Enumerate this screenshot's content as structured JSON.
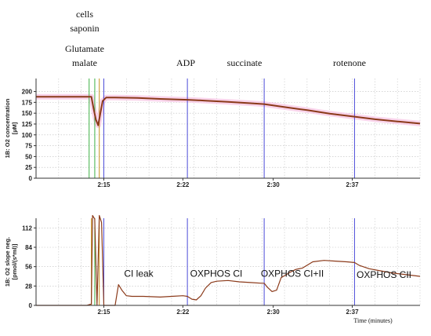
{
  "events": [
    {
      "label": "cells",
      "t": 13.9
    },
    {
      "label": "saponin",
      "t": 13.9
    },
    {
      "label": "Glutamate",
      "t": 13.9
    },
    {
      "label": "malate",
      "t": 13.9
    },
    {
      "label": "ADP",
      "t": 22.4
    },
    {
      "label": "succinate",
      "t": 29.2
    },
    {
      "label": "rotenone",
      "t": 37.2
    }
  ],
  "states": [
    {
      "label": "CI leak",
      "t": 18.3,
      "y": 46
    },
    {
      "label": "OXPHOS CI",
      "t": 26.2,
      "y": 46
    },
    {
      "label": "OXPHOS CI+II",
      "t": 33.4,
      "y": 46
    },
    {
      "label": "OXPHOS CII",
      "t": 41.0,
      "y": 44
    }
  ],
  "chart_data": [
    {
      "type": "line",
      "title": "",
      "ylabel": "1B: O2 concentration [µM]",
      "xlabel": "",
      "xlim": [
        9.0,
        43.0
      ],
      "ylim": [
        0,
        230
      ],
      "yticks": [
        0,
        25,
        50,
        75,
        100,
        125,
        150,
        175,
        200
      ],
      "xticks": [
        {
          "v": 15.0,
          "label": "2:15"
        },
        {
          "v": 22.0,
          "label": "2:22"
        },
        {
          "v": 30.0,
          "label": "2:30"
        },
        {
          "v": 37.0,
          "label": "2:37"
        }
      ],
      "grid": true,
      "markers": [
        {
          "t": 13.7,
          "color": "#3cb043"
        },
        {
          "t": 14.2,
          "color": "#3cb043"
        },
        {
          "t": 14.6,
          "color": "#c8921e"
        },
        {
          "t": 15.0,
          "color": "#4a4ad8"
        },
        {
          "t": 22.4,
          "color": "#4a4ad8"
        },
        {
          "t": 29.2,
          "color": "#4a4ad8"
        },
        {
          "t": 37.2,
          "color": "#4a4ad8"
        }
      ],
      "series": [
        {
          "color": "#8b3a1a",
          "x": [
            9.0,
            11.0,
            13.0,
            13.9,
            14.1,
            14.3,
            14.5,
            14.7,
            14.9,
            15.2,
            16.0,
            18.0,
            20.0,
            22.4,
            24.0,
            26.0,
            28.0,
            29.2,
            31.0,
            33.0,
            35.0,
            37.2,
            39.0,
            41.0,
            43.0
          ],
          "y": [
            188,
            188,
            188,
            188,
            160,
            135,
            122,
            150,
            178,
            186,
            186,
            185,
            183,
            181,
            179,
            176,
            173,
            171,
            164,
            157,
            149,
            142,
            136,
            131,
            126
          ]
        }
      ]
    },
    {
      "type": "line",
      "title": "",
      "ylabel": "1B: O2 slope neg. [pmol/(s*ml)]",
      "xlabel": "Time (minutes)",
      "xlim": [
        9.0,
        43.0
      ],
      "ylim": [
        0,
        126
      ],
      "yticks": [
        0,
        28,
        56,
        84,
        112
      ],
      "xticks": [
        {
          "v": 15.0,
          "label": "2:15"
        },
        {
          "v": 22.0,
          "label": "2:22"
        },
        {
          "v": 30.0,
          "label": "2:30"
        },
        {
          "v": 37.0,
          "label": "2:37"
        }
      ],
      "grid": true,
      "markers": [
        {
          "t": 13.9,
          "color": "#c8921e"
        },
        {
          "t": 14.2,
          "color": "#3cb043"
        },
        {
          "t": 14.6,
          "color": "#c8921e"
        },
        {
          "t": 15.0,
          "color": "#4a4ad8"
        },
        {
          "t": 22.4,
          "color": "#4a4ad8"
        },
        {
          "t": 29.2,
          "color": "#4a4ad8"
        },
        {
          "t": 37.2,
          "color": "#4a4ad8"
        }
      ],
      "series": [
        {
          "color": "#8b3a1a",
          "x": [
            9.0,
            13.2,
            13.5,
            13.9,
            14.0,
            14.2,
            14.4,
            14.6,
            14.8,
            15.0,
            15.4,
            16.0,
            16.3,
            16.6,
            17.0,
            17.5,
            18.5,
            20.0,
            21.0,
            22.0,
            22.4,
            22.8,
            23.2,
            23.6,
            24.0,
            24.5,
            25.0,
            26.0,
            27.0,
            28.0,
            29.0,
            29.2,
            29.5,
            29.9,
            30.3,
            30.7,
            31.5,
            32.0,
            32.6,
            33.5,
            34.5,
            35.5,
            36.5,
            37.2,
            37.6,
            38.5,
            39.5,
            40.5,
            41.5,
            42.5,
            43.0
          ],
          "y": [
            0,
            0,
            0,
            2,
            130,
            125,
            0,
            130,
            120,
            0,
            0,
            0,
            30,
            22,
            14,
            13,
            13,
            12,
            13,
            14,
            13,
            9,
            8,
            14,
            25,
            33,
            35,
            36,
            34,
            33,
            32,
            32,
            26,
            20,
            22,
            40,
            48,
            52,
            54,
            63,
            65,
            64,
            63,
            62,
            58,
            53,
            50,
            47,
            45,
            43,
            42
          ]
        }
      ]
    }
  ]
}
